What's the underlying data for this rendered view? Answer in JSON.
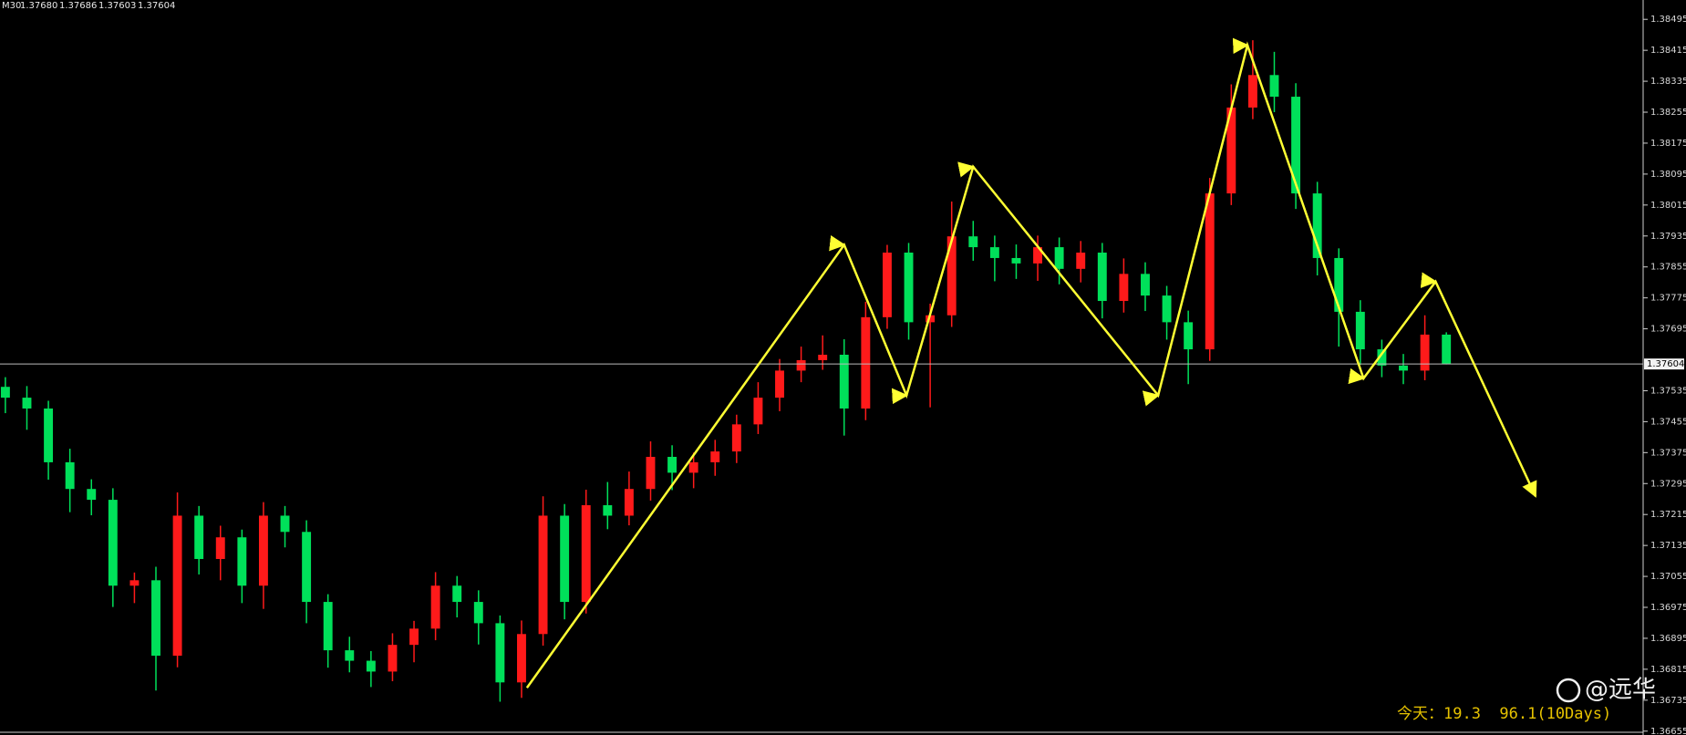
{
  "chart_data": {
    "type": "candlestick",
    "timeframe": "M30",
    "header_values": [
      "1.37680",
      "1.37686",
      "1.37603",
      "1.37604"
    ],
    "open": [
      1.37545,
      1.37517,
      1.37489,
      1.3735,
      1.37281,
      1.37253,
      1.37031,
      1.37045,
      1.3685,
      1.37212,
      1.371,
      1.37156,
      1.37031,
      1.37212,
      1.3717,
      1.36989,
      1.36864,
      1.36837,
      1.36809,
      1.36878,
      1.3692,
      1.37031,
      1.36989,
      1.36934,
      1.36781,
      1.36906,
      1.37212,
      1.36989,
      1.37239,
      1.37212,
      1.37281,
      1.37364,
      1.37323,
      1.3735,
      1.37378,
      1.37448,
      1.37517,
      1.37587,
      1.37614,
      1.37628,
      1.37489,
      1.37725,
      1.37892,
      1.37712,
      1.3773,
      1.37934,
      1.37906,
      1.37878,
      1.37864,
      1.37906,
      1.3785,
      1.37892,
      1.37767,
      1.37837,
      1.37781,
      1.37712,
      1.37642,
      1.38045,
      1.38267,
      1.38351,
      1.38295,
      1.38045,
      1.37878,
      1.37739,
      1.37642,
      1.376,
      1.37587,
      1.3768
    ],
    "high": [
      1.3757,
      1.37547,
      1.37509,
      1.37385,
      1.37306,
      1.37283,
      1.37065,
      1.3708,
      1.37272,
      1.37237,
      1.37186,
      1.37176,
      1.37247,
      1.37237,
      1.372,
      1.37009,
      1.36899,
      1.36862,
      1.36908,
      1.3694,
      1.37066,
      1.37056,
      1.37019,
      1.36954,
      1.36941,
      1.37262,
      1.37242,
      1.37279,
      1.37299,
      1.37326,
      1.37404,
      1.37394,
      1.37375,
      1.37408,
      1.37473,
      1.37557,
      1.37617,
      1.37649,
      1.37678,
      1.37668,
      1.37765,
      1.37912,
      1.37917,
      1.3776,
      1.38024,
      1.37974,
      1.37936,
      1.37913,
      1.37936,
      1.37931,
      1.37922,
      1.37917,
      1.37877,
      1.37867,
      1.37806,
      1.37742,
      1.38085,
      1.38327,
      1.38441,
      1.38411,
      1.3833,
      1.38075,
      1.37903,
      1.37769,
      1.37667,
      1.3763,
      1.3773,
      1.37686
    ],
    "low": [
      1.37477,
      1.37434,
      1.37305,
      1.37221,
      1.37213,
      1.36976,
      1.36986,
      1.3676,
      1.3682,
      1.3706,
      1.37045,
      1.36986,
      1.36971,
      1.3713,
      1.36934,
      1.36819,
      1.36807,
      1.36769,
      1.36784,
      1.36833,
      1.3689,
      1.36949,
      1.36879,
      1.36731,
      1.36741,
      1.36876,
      1.36944,
      1.36959,
      1.37177,
      1.37187,
      1.37251,
      1.37278,
      1.37283,
      1.37315,
      1.37348,
      1.37423,
      1.37482,
      1.37557,
      1.37589,
      1.37419,
      1.37459,
      1.37695,
      1.37667,
      1.37492,
      1.377,
      1.37871,
      1.37818,
      1.37824,
      1.37819,
      1.3781,
      1.37815,
      1.37722,
      1.37737,
      1.37741,
      1.37667,
      1.37552,
      1.37612,
      1.38015,
      1.38237,
      1.38255,
      1.38005,
      1.37833,
      1.37649,
      1.37602,
      1.3757,
      1.37552,
      1.37562,
      1.37603
    ],
    "close": [
      1.37517,
      1.37489,
      1.3735,
      1.37281,
      1.37253,
      1.37031,
      1.37045,
      1.3685,
      1.37212,
      1.371,
      1.37156,
      1.37031,
      1.37212,
      1.3717,
      1.36989,
      1.36864,
      1.36837,
      1.36809,
      1.36878,
      1.3692,
      1.37031,
      1.36989,
      1.36934,
      1.36781,
      1.36906,
      1.37212,
      1.36989,
      1.37239,
      1.37212,
      1.37281,
      1.37364,
      1.37323,
      1.3735,
      1.37378,
      1.37448,
      1.37517,
      1.37587,
      1.37614,
      1.37628,
      1.37489,
      1.37725,
      1.37892,
      1.37712,
      1.3773,
      1.37934,
      1.37906,
      1.37878,
      1.37864,
      1.37906,
      1.3785,
      1.37892,
      1.37767,
      1.37837,
      1.37781,
      1.37712,
      1.37642,
      1.38045,
      1.38267,
      1.38351,
      1.38295,
      1.38045,
      1.37878,
      1.37739,
      1.37642,
      1.376,
      1.37587,
      1.3768,
      1.37604
    ],
    "up_color": "#ff1a1a",
    "down_color": "#00e05a",
    "xlim": [
      -0.25,
      76.15
    ],
    "ylim": [
      1.36645,
      1.38545
    ],
    "yticks": [
      1.38495,
      1.38415,
      1.38335,
      1.38255,
      1.38175,
      1.38095,
      1.38015,
      1.37935,
      1.37855,
      1.37775,
      1.37695,
      1.37535,
      1.37455,
      1.37375,
      1.37295,
      1.37215,
      1.37135,
      1.37055,
      1.36975,
      1.36895,
      1.36815,
      1.36735,
      1.36655
    ],
    "current_price": 1.37604,
    "zigzag": {
      "color": "#ffff33",
      "x": [
        24.25,
        39.0,
        41.9,
        45.0,
        53.6,
        57.75,
        63.15,
        66.5,
        71.15
      ],
      "y": [
        1.36767,
        1.37912,
        1.37523,
        1.38114,
        1.37523,
        1.38428,
        1.37567,
        1.37817,
        1.37262
      ]
    }
  },
  "footer_text": "今天：19.3  96.1(10Days)",
  "watermark": "@远华"
}
